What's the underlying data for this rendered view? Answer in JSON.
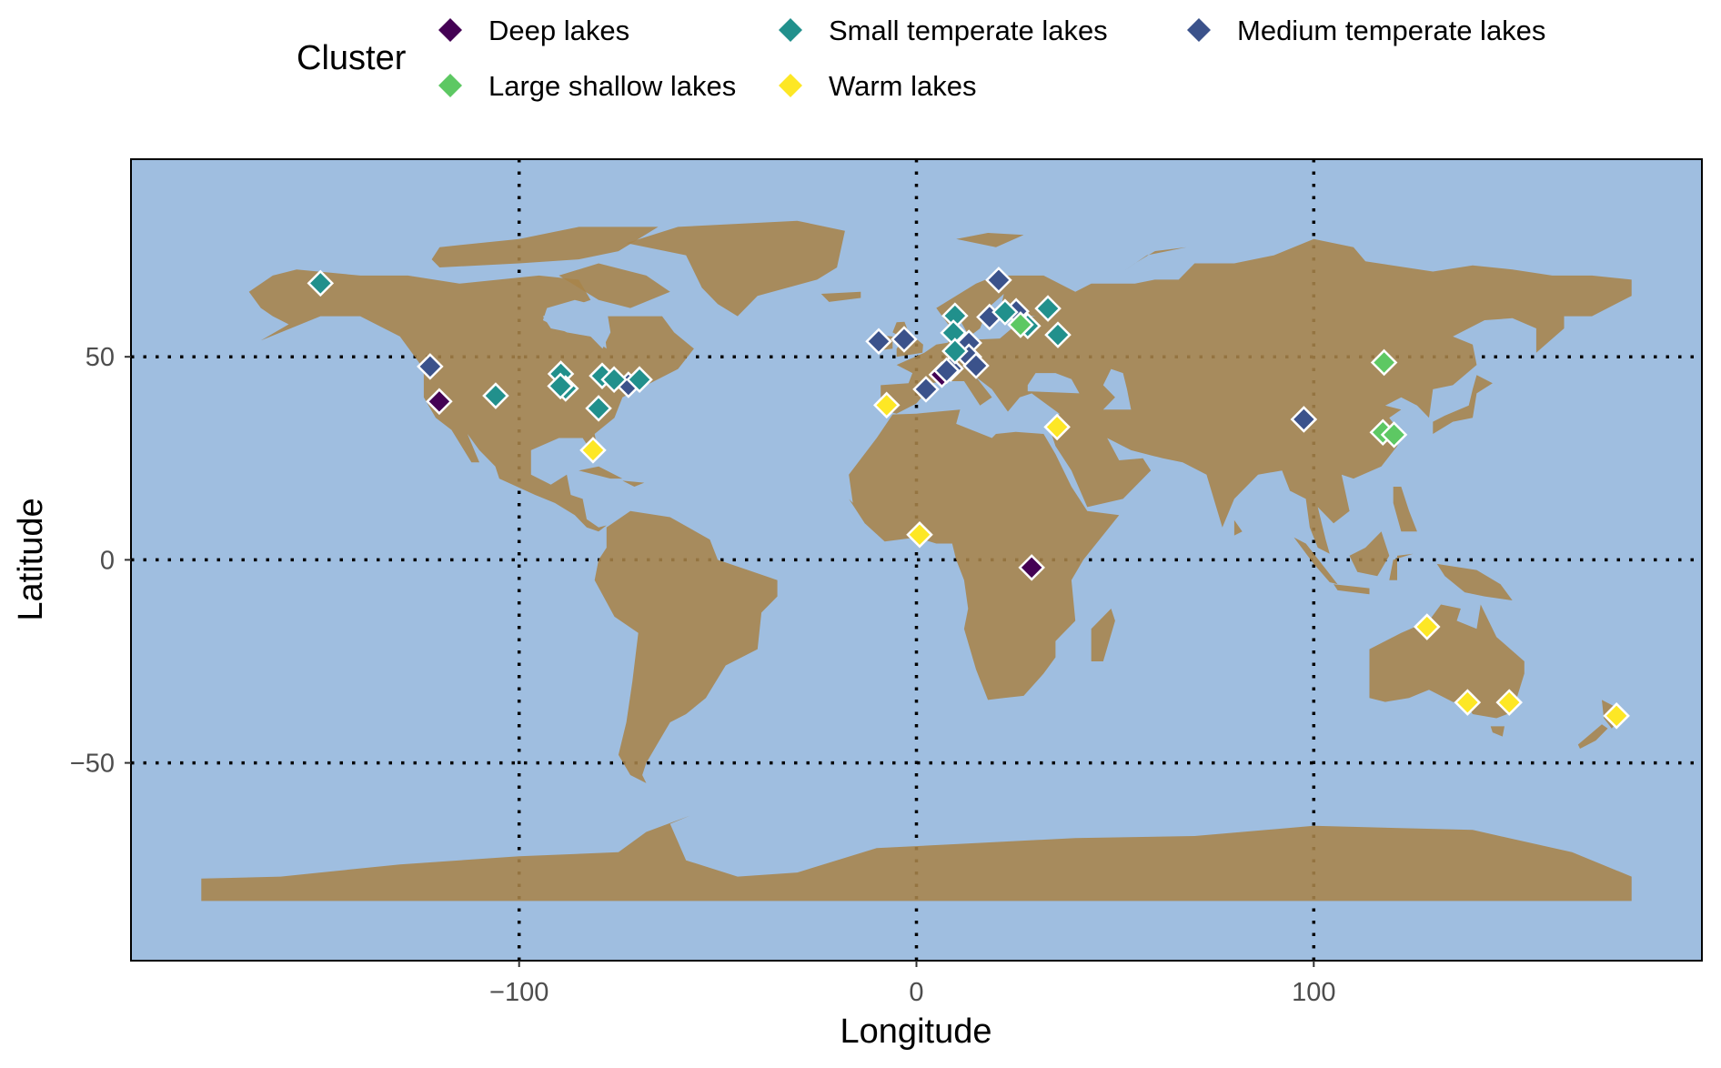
{
  "chart_data": {
    "type": "scatter",
    "subtype": "world-map",
    "xlabel": "Longitude",
    "ylabel": "Latitude",
    "xlim": [
      -198,
      198
    ],
    "ylim": [
      -98.6,
      98.6
    ],
    "x_ticks": [
      -100,
      0,
      100
    ],
    "x_tick_labels": [
      "−100",
      "0",
      "100"
    ],
    "y_ticks": [
      -50,
      0,
      50
    ],
    "y_tick_labels": [
      "−50",
      "0",
      "50"
    ],
    "grid": "dotted black at ticks",
    "legend": {
      "title": "Cluster",
      "position": "top",
      "marker": "diamond"
    },
    "colors": {
      "water": "#9FBEE0",
      "land": "#A9844A"
    },
    "series": [
      {
        "name": "Deep lakes",
        "color": "#440154",
        "points": [
          [
            6.4,
            45.6
          ],
          [
            -120.1,
            39.0
          ],
          [
            29.0,
            -1.9
          ]
        ]
      },
      {
        "name": "Medium temperate lakes",
        "color": "#3B528B",
        "points": [
          [
            -122.4,
            47.6
          ],
          [
            -72.5,
            43.1
          ],
          [
            -9.5,
            53.8
          ],
          [
            -3.1,
            54.3
          ],
          [
            20.7,
            68.9
          ],
          [
            18.4,
            59.8
          ],
          [
            25.1,
            61.2
          ],
          [
            13.2,
            53.4
          ],
          [
            13.2,
            50.0
          ],
          [
            15.0,
            47.8
          ],
          [
            8.6,
            47.1
          ],
          [
            7.6,
            46.6
          ],
          [
            2.4,
            42.0
          ],
          [
            97.5,
            34.6
          ]
        ]
      },
      {
        "name": "Small temperate lakes",
        "color": "#21908C",
        "points": [
          [
            -150.0,
            68.1
          ],
          [
            -105.9,
            40.4
          ],
          [
            -89.5,
            45.8
          ],
          [
            -88.3,
            42.2
          ],
          [
            -89.6,
            42.8
          ],
          [
            -79.1,
            45.3
          ],
          [
            -76.1,
            44.4
          ],
          [
            -69.7,
            44.4
          ],
          [
            -80.0,
            37.3
          ],
          [
            9.7,
            60.1
          ],
          [
            9.3,
            55.9
          ],
          [
            9.7,
            51.4
          ],
          [
            22.3,
            61.0
          ],
          [
            28.0,
            57.6
          ],
          [
            33.1,
            61.9
          ],
          [
            35.6,
            55.4
          ]
        ]
      },
      {
        "name": "Large shallow lakes",
        "color": "#5DC863",
        "points": [
          [
            26.2,
            57.9
          ],
          [
            117.7,
            48.6
          ],
          [
            117.4,
            31.4
          ],
          [
            120.2,
            30.8
          ]
        ]
      },
      {
        "name": "Warm lakes",
        "color": "#FDE725",
        "points": [
          [
            -81.4,
            27.0
          ],
          [
            -7.5,
            38.1
          ],
          [
            35.4,
            32.7
          ],
          [
            0.8,
            6.2
          ],
          [
            128.5,
            -16.5
          ],
          [
            138.7,
            -35.1
          ],
          [
            149.2,
            -35.1
          ],
          [
            176.2,
            -38.4
          ]
        ]
      }
    ]
  }
}
